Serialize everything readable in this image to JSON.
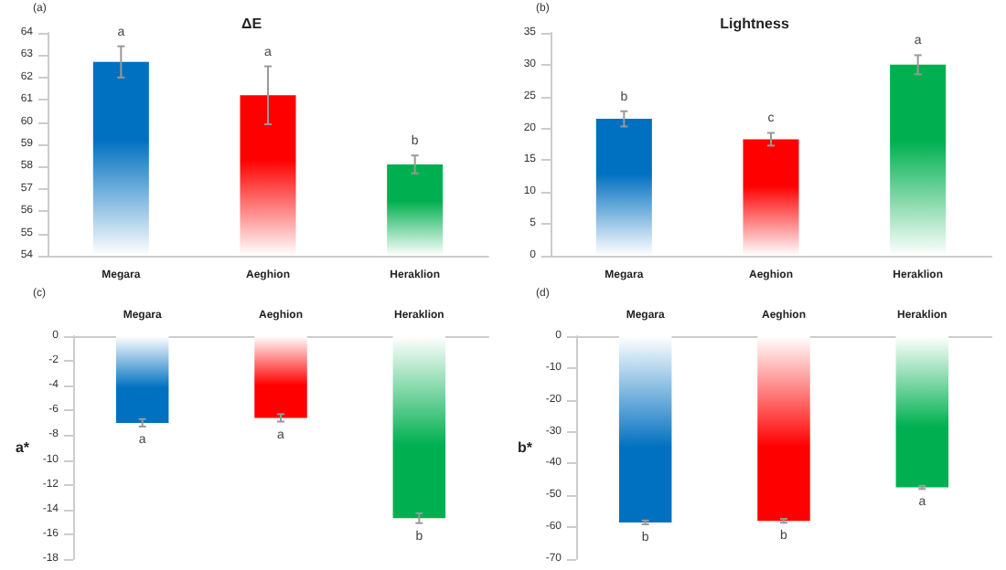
{
  "chart_data": [
    {
      "type": "bar",
      "title": "ΔE",
      "annotations": [
        "(a)"
      ],
      "categories": [
        "Megara",
        "Aeghion",
        "Heraklion"
      ],
      "values": [
        62.7,
        61.2,
        58.1
      ],
      "value_labels": [
        "a",
        "a",
        "b"
      ],
      "errors": [
        0.7,
        1.3,
        0.4
      ],
      "colors": [
        "#0070c0",
        "#ff0000",
        "#00b050"
      ],
      "ylim": [
        54,
        64
      ],
      "yticks": [
        54,
        55,
        56,
        57,
        58,
        59,
        60,
        61,
        62,
        63,
        64
      ]
    },
    {
      "type": "bar",
      "title": "Lightness",
      "annotations": [
        "(b)"
      ],
      "categories": [
        "Megara",
        "Aeghion",
        "Heraklion"
      ],
      "values": [
        21.5,
        18.3,
        30
      ],
      "value_labels": [
        "b",
        "c",
        "a"
      ],
      "errors": [
        1.2,
        1.0,
        1.5
      ],
      "colors": [
        "#0070c0",
        "#ff0000",
        "#00b050"
      ],
      "ylim": [
        0,
        35
      ],
      "yticks": [
        0,
        5,
        10,
        15,
        20,
        25,
        30,
        35
      ]
    },
    {
      "type": "bar",
      "ylabel": "a*",
      "annotations": [
        "(c)"
      ],
      "categories": [
        "Megara",
        "Aeghion",
        "Heraklion"
      ],
      "values": [
        -7.0,
        -6.6,
        -14.7
      ],
      "value_labels": [
        "a",
        "a",
        "b"
      ],
      "errors": [
        0.3,
        0.3,
        0.4
      ],
      "colors": [
        "#0070c0",
        "#ff0000",
        "#00b050"
      ],
      "ylim": [
        -18,
        0
      ],
      "yticks": [
        -18,
        -16,
        -14,
        -12,
        -10,
        -8,
        -6,
        -4,
        -2,
        0
      ]
    },
    {
      "type": "bar",
      "ylabel": "b*",
      "annotations": [
        "(d)"
      ],
      "categories": [
        "Megara",
        "Aeghion",
        "Heraklion"
      ],
      "values": [
        -58.5,
        -58,
        -47.5
      ],
      "value_labels": [
        "b",
        "b",
        "a"
      ],
      "errors": [
        0.6,
        0.6,
        0.5
      ],
      "colors": [
        "#0070c0",
        "#ff0000",
        "#00b050"
      ],
      "ylim": [
        -70,
        0
      ],
      "yticks": [
        -70,
        -60,
        -50,
        -40,
        -30,
        -20,
        -10,
        0
      ]
    }
  ]
}
